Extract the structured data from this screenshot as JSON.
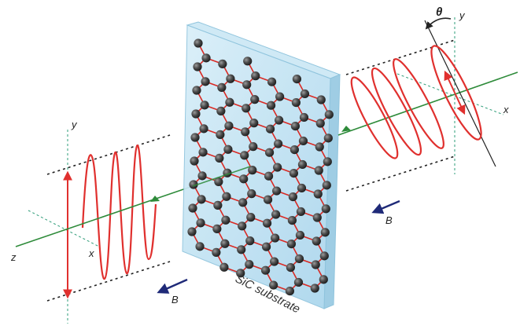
{
  "labels": {
    "z": "z",
    "x_left": "x",
    "y_left": "y",
    "y_right": "y",
    "x_right": "x",
    "theta": "θ",
    "b_left": "B",
    "b_right": "B",
    "substrate": "SiC substrate"
  },
  "colors": {
    "beam": "#2e8b3a",
    "wave": "#e0302e",
    "envelope": "#222222",
    "axis_dashed": "#2e9c78",
    "field_arrow": "#1f2a78",
    "substrate_face": "#bfe2f2",
    "substrate_edge": "#8fc4dd",
    "lattice_bond": "#d92a24",
    "atom": "#3a3a3a"
  },
  "icons": {
    "field_arrow_left": "arrow-icon",
    "field_arrow_right": "arrow-icon",
    "rotation_arrow": "curved-arrow-icon",
    "propagation_arrow": "triangle-arrow-icon"
  }
}
